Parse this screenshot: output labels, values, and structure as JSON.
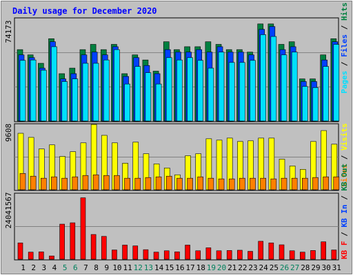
{
  "chart_data": {
    "type": "bar",
    "title": "Daily usage for December 2020",
    "categories": [
      "1",
      "2",
      "3",
      "4",
      "5",
      "6",
      "7",
      "8",
      "9",
      "10",
      "11",
      "12",
      "13",
      "14",
      "15",
      "16",
      "17",
      "18",
      "19",
      "20",
      "21",
      "22",
      "23",
      "24",
      "25",
      "26",
      "27",
      "28",
      "29",
      "30",
      "31"
    ],
    "weekend_days": [
      "5",
      "6",
      "12",
      "13",
      "19",
      "20",
      "26",
      "27"
    ],
    "colors": {
      "title": "#0000ff",
      "background": "#c0c0c0",
      "hits": "#008040",
      "files": "#0040ff",
      "pages": "#00e0ff",
      "sites": "#ff8000",
      "visits": "#ffff00",
      "kbytes": "#ff0000",
      "weekday_label": "#000000",
      "weekend_label": "#00805c"
    },
    "panels": [
      {
        "id": "top",
        "ymax_label": "74173",
        "ylim": [
          0,
          74173
        ],
        "legend": [
          {
            "text": "Hits",
            "color": "#008040"
          },
          {
            "text": "Files",
            "color": "#0040ff"
          },
          {
            "text": "Pages",
            "color": "#00e0ff"
          }
        ],
        "series": [
          {
            "name": "Hits",
            "values": [
              51700,
              47900,
              41800,
              59600,
              34300,
              38300,
              51700,
              55500,
              51700,
              55500,
              34300,
              47900,
              44200,
              36100,
              57400,
              51700,
              53800,
              53800,
              57400,
              55500,
              51700,
              51700,
              49900,
              70300,
              70300,
              55500,
              57400,
              30500,
              30500,
              47900,
              59600
            ]
          },
          {
            "name": "Files",
            "values": [
              47900,
              45900,
              38300,
              57400,
              30500,
              34300,
              47900,
              49900,
              47900,
              53800,
              32300,
              45900,
              40200,
              34300,
              51700,
              49900,
              49900,
              51700,
              49900,
              53800,
              49900,
              49900,
              47900,
              66400,
              68400,
              51700,
              53800,
              28600,
              28600,
              44200,
              57400
            ]
          },
          {
            "name": "Pages",
            "values": [
              43900,
              44200,
              36800,
              53800,
              28600,
              30500,
              41800,
              41800,
              44200,
              51700,
              26800,
              39500,
              35000,
              26800,
              45900,
              44200,
              45900,
              43900,
              38300,
              49900,
              42400,
              42400,
              43900,
              62500,
              61200,
              47900,
              49900,
              25000,
              24200,
              39500,
              55500
            ]
          }
        ]
      },
      {
        "id": "middle",
        "ymax_label": "9608",
        "ylim": [
          0,
          9608
        ],
        "legend": [
          {
            "text": "Visits",
            "color": "#ffff00"
          },
          {
            "text": "Sites",
            "color": "#ff8000"
          }
        ],
        "series": [
          {
            "name": "Visits",
            "values": [
              8300,
              7700,
              6000,
              6600,
              4900,
              5600,
              6900,
              9600,
              8000,
              6900,
              3900,
              7000,
              5300,
              3800,
              3200,
              2200,
              5000,
              5300,
              7500,
              7300,
              7600,
              7100,
              7200,
              7600,
              7600,
              4500,
              3500,
              3000,
              7100,
              8700,
              6700
            ]
          },
          {
            "name": "Sites",
            "values": [
              2400,
              2000,
              1700,
              1900,
              1700,
              1900,
              2100,
              2200,
              2100,
              2100,
              1700,
              1700,
              1800,
              1900,
              2000,
              1700,
              1700,
              1900,
              1700,
              1600,
              1600,
              1700,
              1700,
              1700,
              1600,
              1700,
              1700,
              1700,
              1800,
              1900,
              1900
            ]
          }
        ]
      },
      {
        "id": "bottom",
        "ymax_label": "24041567",
        "ylim": [
          0,
          24041567
        ],
        "legend": [
          {
            "text": "KB Out",
            "color": "#008040"
          },
          {
            "text": "KB In",
            "color": "#0040ff"
          },
          {
            "text": "KB F",
            "color": "#ff0000"
          }
        ],
        "series": [
          {
            "name": "KB F",
            "values": [
              6000000,
              2600000,
              2700000,
              1200000,
              12900000,
              13400000,
              22600000,
              9100000,
              8400000,
              3400000,
              5200000,
              4900000,
              3500000,
              2600000,
              3100000,
              2700000,
              5200000,
              3100000,
              4200000,
              3100000,
              3200000,
              3300000,
              2900000,
              6600000,
              6000000,
              5300000,
              3100000,
              2600000,
              3200000,
              6400000,
              3400000
            ]
          }
        ]
      }
    ]
  }
}
